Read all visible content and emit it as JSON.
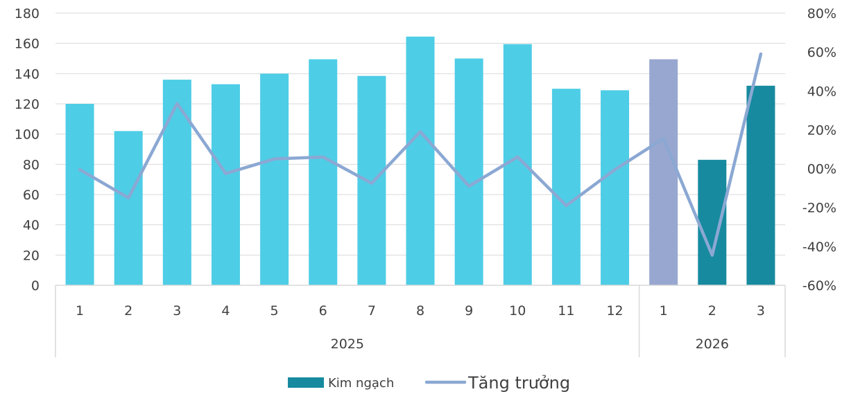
{
  "chart_data": {
    "type": "bar",
    "title": "",
    "xlabel": "",
    "ylabel": "",
    "categories": [
      "1",
      "2",
      "3",
      "4",
      "5",
      "6",
      "7",
      "8",
      "9",
      "10",
      "11",
      "12",
      "1",
      "2",
      "3"
    ],
    "groups": [
      {
        "label": "2025",
        "count": 12
      },
      {
        "label": "2026",
        "count": 3
      }
    ],
    "series": [
      {
        "name": "Kim ngạch",
        "type": "bar",
        "axis": "left",
        "values": [
          120,
          102,
          136,
          133,
          140,
          149.5,
          138.5,
          164.5,
          150,
          159.5,
          130,
          129,
          149.5,
          83,
          132
        ],
        "colors": [
          "#4ecde6",
          "#4ecde6",
          "#4ecde6",
          "#4ecde6",
          "#4ecde6",
          "#4ecde6",
          "#4ecde6",
          "#4ecde6",
          "#4ecde6",
          "#4ecde6",
          "#4ecde6",
          "#4ecde6",
          "#97a7cf",
          "#178a9f",
          "#178a9f"
        ]
      },
      {
        "name": "Tăng trưởng",
        "type": "line",
        "axis": "right",
        "values": [
          -0.005,
          -0.15,
          0.335,
          -0.025,
          0.05,
          0.06,
          -0.075,
          0.19,
          -0.09,
          0.06,
          -0.19,
          -0.005,
          0.155,
          -0.445,
          0.59
        ],
        "color": "#8ba8d3"
      }
    ],
    "ylim_left": [
      0,
      180
    ],
    "yticks_left": [
      "0",
      "20",
      "40",
      "60",
      "80",
      "100",
      "120",
      "140",
      "160",
      "180"
    ],
    "ylim_right": [
      -0.6,
      0.8
    ],
    "yticks_right": [
      "-60%",
      "-40%",
      "-20%",
      "00%",
      "20%",
      "40%",
      "60%",
      "80%"
    ],
    "grid": true,
    "legend_position": "bottom",
    "legend_swatch_color": "#178a9f",
    "grid_color": "#d9d9d9"
  }
}
